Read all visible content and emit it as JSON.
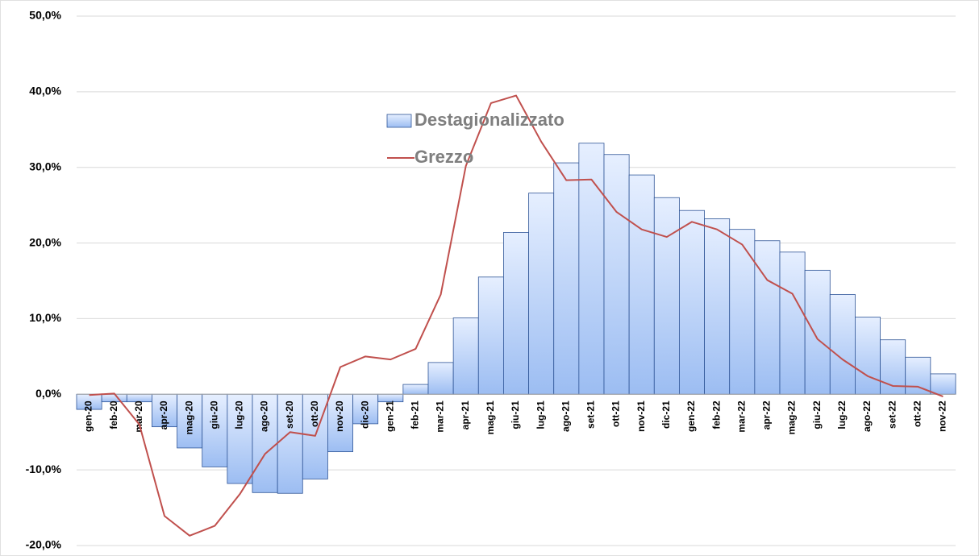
{
  "chart_data": {
    "type": "bar-line",
    "categories": [
      "gen-20",
      "feb-20",
      "mar-20",
      "apr-20",
      "mag-20",
      "giu-20",
      "lug-20",
      "ago-20",
      "set-20",
      "ott-20",
      "nov-20",
      "dic-20",
      "gen-21",
      "feb-21",
      "mar-21",
      "apr-21",
      "mag-21",
      "giu-21",
      "lug-21",
      "ago-21",
      "set-21",
      "ott-21",
      "nov-21",
      "dic-21",
      "gen-22",
      "feb-22",
      "mar-22",
      "apr-22",
      "mag-22",
      "giu-22",
      "lug-22",
      "ago-22",
      "set-22",
      "ott-22",
      "nov-22"
    ],
    "series": [
      {
        "name": "Destagionalizzato",
        "kind": "bar",
        "color": "#aac8f5",
        "values": [
          -2.0,
          -1.0,
          -1.0,
          -4.3,
          -7.1,
          -9.6,
          -11.8,
          -13.0,
          -13.1,
          -11.2,
          -7.6,
          -3.9,
          -1.0,
          1.3,
          4.2,
          10.1,
          15.5,
          21.4,
          26.6,
          30.6,
          33.2,
          31.7,
          29.0,
          26.0,
          24.3,
          23.2,
          21.8,
          20.3,
          18.8,
          16.4,
          13.2,
          10.2,
          7.2,
          4.9,
          2.7
        ]
      },
      {
        "name": "Grezzo",
        "kind": "line",
        "color": "#c0504d",
        "values": [
          -0.1,
          0.1,
          -4.0,
          -16.1,
          -18.7,
          -17.4,
          -13.2,
          -7.9,
          -5.0,
          -5.5,
          3.6,
          5.0,
          4.6,
          6.0,
          13.2,
          30.2,
          38.5,
          39.5,
          33.4,
          28.3,
          28.4,
          24.1,
          21.8,
          20.8,
          22.8,
          21.8,
          19.8,
          15.1,
          13.3,
          7.3,
          4.6,
          2.4,
          1.1,
          1.0,
          -0.3
        ]
      }
    ],
    "ylim": [
      -20,
      50
    ],
    "yticks": [
      {
        "value": -20,
        "label": "-20,0%"
      },
      {
        "value": -10,
        "label": "-10,0%"
      },
      {
        "value": 0,
        "label": "0,0%"
      },
      {
        "value": 10,
        "label": "10,0%"
      },
      {
        "value": 20,
        "label": "20,0%"
      },
      {
        "value": 30,
        "label": "30,0%"
      },
      {
        "value": 40,
        "label": "40,0%"
      },
      {
        "value": 50,
        "label": "50,0%"
      }
    ],
    "grid": true,
    "legend": "top-center"
  }
}
